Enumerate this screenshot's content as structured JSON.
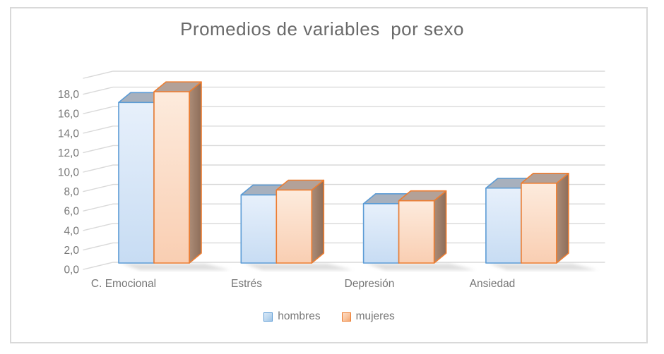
{
  "frame": {
    "border_color": "#d9d9d9",
    "background": "#ffffff"
  },
  "chart_data": {
    "type": "bar",
    "variant": "3d-column",
    "title": "Promedios de variables  por sexo",
    "title_color": "#6a6a6a",
    "categories": [
      "C. Emocional",
      "Estrés",
      "Depresión",
      "Ansiedad"
    ],
    "series": [
      {
        "name": "hombres",
        "values": [
          16.5,
          7.0,
          6.1,
          7.7
        ],
        "border": "#5b9bd5",
        "front_top": "#e7f0fb",
        "front_bottom": "#c7dcf3",
        "top_face": "#a7b0bd",
        "side_light": "#8ba5c4",
        "side_dark": "#7590af"
      },
      {
        "name": "mujeres",
        "values": [
          17.6,
          7.5,
          6.4,
          8.2
        ],
        "border": "#ed7d31",
        "front_top": "#fdebdd",
        "front_bottom": "#f9ceb2",
        "top_face": "#b3a198",
        "side_light": "#ac8c77",
        "side_dark": "#8d6d59"
      }
    ],
    "y_axis": {
      "min": 0,
      "max": 18,
      "step": 2,
      "tick_labels": [
        "0,0",
        "2,0",
        "4,0",
        "6,0",
        "8,0",
        "10,0",
        "12,0",
        "14,0",
        "16,0",
        "18,0"
      ],
      "label_color": "#767676",
      "gridline_color": "#d9d9d9",
      "grid_on": true
    },
    "legend": {
      "position": "bottom",
      "entries": [
        "hombres",
        "mujeres"
      ]
    },
    "category_label_color": "#767676"
  }
}
